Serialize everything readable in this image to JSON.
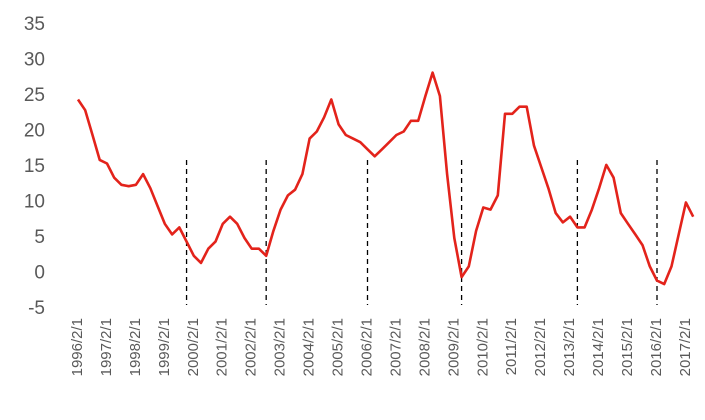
{
  "chart_data": {
    "type": "line",
    "x": [
      "1996/2/1",
      "1996/5/1",
      "1996/8/1",
      "1996/11/1",
      "1997/2/1",
      "1997/5/1",
      "1997/8/1",
      "1997/11/1",
      "1998/2/1",
      "1998/5/1",
      "1998/8/1",
      "1998/11/1",
      "1999/2/1",
      "1999/5/1",
      "1999/8/1",
      "1999/11/1",
      "2000/2/1",
      "2000/5/1",
      "2000/8/1",
      "2000/11/1",
      "2001/2/1",
      "2001/5/1",
      "2001/8/1",
      "2001/11/1",
      "2002/2/1",
      "2002/5/1",
      "2002/8/1",
      "2002/11/1",
      "2003/2/1",
      "2003/5/1",
      "2003/8/1",
      "2003/11/1",
      "2004/2/1",
      "2004/5/1",
      "2004/8/1",
      "2004/11/1",
      "2005/2/1",
      "2005/5/1",
      "2005/8/1",
      "2005/11/1",
      "2006/2/1",
      "2006/5/1",
      "2006/8/1",
      "2006/11/1",
      "2007/2/1",
      "2007/5/1",
      "2007/8/1",
      "2007/11/1",
      "2008/2/1",
      "2008/5/1",
      "2008/8/1",
      "2008/11/1",
      "2009/2/1",
      "2009/5/1",
      "2009/8/1",
      "2009/11/1",
      "2010/2/1",
      "2010/5/1",
      "2010/8/1",
      "2010/11/1",
      "2011/2/1",
      "2011/5/1",
      "2011/8/1",
      "2011/11/1",
      "2012/2/1",
      "2012/5/1",
      "2012/8/1",
      "2012/11/1",
      "2013/2/1",
      "2013/5/1",
      "2013/8/1",
      "2013/11/1",
      "2014/2/1",
      "2014/5/1",
      "2014/8/1",
      "2014/11/1",
      "2015/2/1",
      "2015/5/1",
      "2015/8/1",
      "2015/11/1",
      "2016/2/1",
      "2016/5/1",
      "2016/8/1",
      "2016/11/1",
      "2017/2/1",
      "2017/5/1"
    ],
    "series": [
      {
        "color": "#e3231b",
        "values": [
          24.5,
          23,
          19.5,
          16,
          15.5,
          13.5,
          12.5,
          12.3,
          12.5,
          14,
          12,
          9.5,
          7,
          5.5,
          6.5,
          4.5,
          2.5,
          1.5,
          3.5,
          4.5,
          7,
          8,
          7,
          5,
          3.5,
          3.5,
          2.5,
          6,
          9,
          11,
          11.8,
          14,
          19,
          20,
          22,
          24.5,
          21,
          19.5,
          19,
          18.5,
          17.5,
          16.5,
          17.5,
          18.5,
          19.5,
          20,
          21.5,
          21.5,
          25,
          28.3,
          25,
          14,
          5,
          -0.5,
          1,
          6,
          9.3,
          9,
          11,
          22.5,
          22.5,
          23.5,
          23.5,
          18,
          15,
          12,
          8.5,
          7.2,
          8,
          6.5,
          6.5,
          9,
          12,
          15.3,
          13.5,
          8.5,
          7,
          5.5,
          4,
          1,
          -1,
          -1.5,
          1,
          5.5,
          10,
          8
        ]
      }
    ],
    "xticks": [
      "1996/2/1",
      "1997/2/1",
      "1998/2/1",
      "1999/2/1",
      "2000/2/1",
      "2001/2/1",
      "2002/2/1",
      "2003/2/1",
      "2004/2/1",
      "2005/2/1",
      "2006/2/1",
      "2007/2/1",
      "2008/2/1",
      "2009/2/1",
      "2010/2/1",
      "2011/2/1",
      "2012/2/1",
      "2013/2/1",
      "2014/2/1",
      "2015/2/1",
      "2016/2/1",
      "2017/2/1"
    ],
    "vlines": [
      "1999/11/1",
      "2002/8/1",
      "2006/2/1",
      "2009/5/1",
      "2013/5/1",
      "2016/2/1"
    ],
    "ylim": [
      -5,
      35
    ],
    "yticks": [
      -5,
      0,
      5,
      10,
      15,
      20,
      25,
      30,
      35
    ]
  }
}
